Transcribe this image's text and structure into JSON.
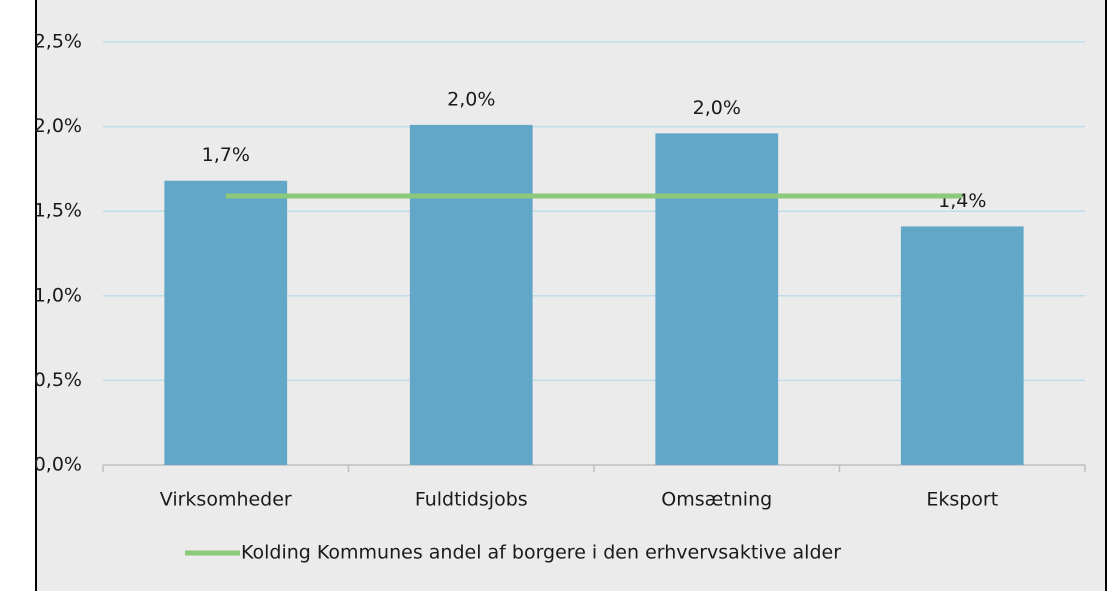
{
  "chart_data": {
    "type": "bar",
    "categories": [
      "Virksomheder",
      "Fuldtidsjobs",
      "Omsætning",
      "Eksport"
    ],
    "series": [
      {
        "type": "bar",
        "color": "#62a6c8",
        "values": [
          1.68,
          2.01,
          1.96,
          1.41
        ],
        "value_labels": [
          "1,7%",
          "2,0%",
          "2,0%",
          "1,4%"
        ]
      },
      {
        "type": "line",
        "name": "Kolding Kommunes andel af borgere i den erhvervsaktive alder",
        "color": "#8cc97a",
        "values": [
          1.59,
          1.59,
          1.59,
          1.59
        ]
      }
    ],
    "ylim": [
      0,
      2.5
    ],
    "yticks": [
      {
        "value": 0,
        "label": "0,0%"
      },
      {
        "value": 0.5,
        "label": "0,5%"
      },
      {
        "value": 1,
        "label": "1,0%"
      },
      {
        "value": 1.5,
        "label": "1,5%"
      },
      {
        "value": 2,
        "label": "2,0%"
      },
      {
        "value": 2.5,
        "label": "2,5%"
      }
    ],
    "grid": true,
    "legend": "bottom"
  }
}
